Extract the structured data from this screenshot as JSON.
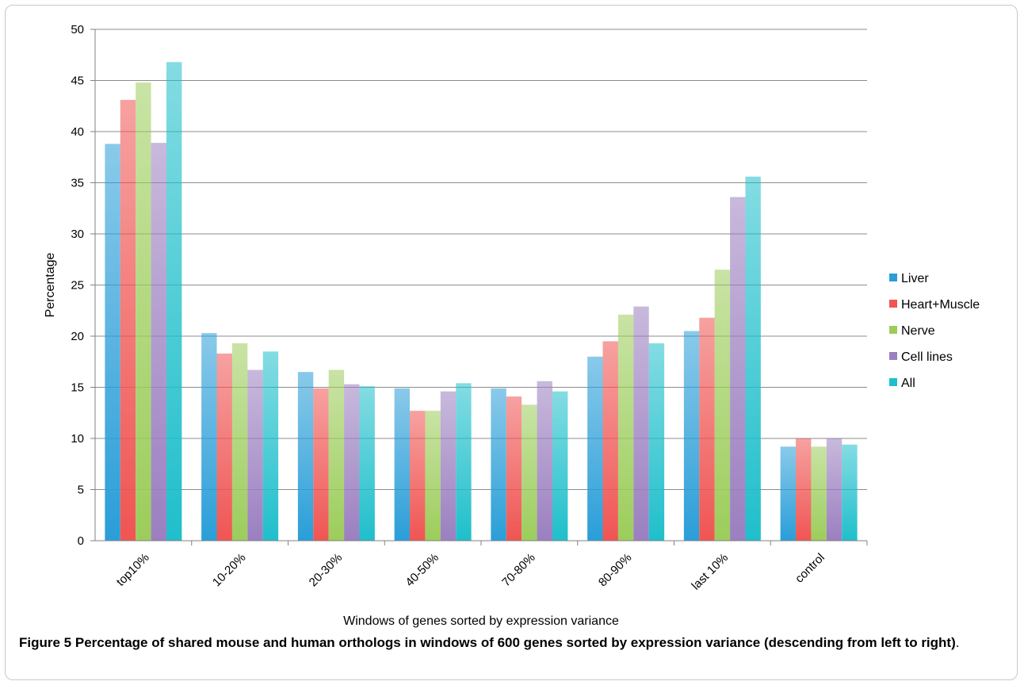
{
  "chart_data": {
    "type": "bar",
    "xlabel": "Windows of genes sorted by expression variance",
    "ylabel": "Percentage",
    "ylim": [
      0,
      50
    ],
    "yticks": [
      0,
      5,
      10,
      15,
      20,
      25,
      30,
      35,
      40,
      45,
      50
    ],
    "grid": true,
    "legend_position": "right",
    "categories": [
      "top10%",
      "10-20%",
      "20-30%",
      "40-50%",
      "70-80%",
      "80-90%",
      "last 10%",
      "control"
    ],
    "series": [
      {
        "name": "Liver",
        "color": "#2a9ed8",
        "values": [
          38.8,
          20.3,
          16.5,
          14.9,
          14.9,
          18.0,
          20.5,
          9.2
        ]
      },
      {
        "name": "Heart+Muscle",
        "color": "#ef5553",
        "values": [
          43.1,
          18.3,
          14.9,
          12.7,
          14.1,
          19.5,
          21.8,
          10.0
        ]
      },
      {
        "name": "Nerve",
        "color": "#9ccd5b",
        "values": [
          44.8,
          19.3,
          16.7,
          12.7,
          13.3,
          22.1,
          26.5,
          9.2
        ]
      },
      {
        "name": "Cell lines",
        "color": "#9b7fc0",
        "values": [
          38.9,
          16.7,
          15.3,
          14.6,
          15.6,
          22.9,
          33.6,
          10.0
        ]
      },
      {
        "name": "All",
        "color": "#1fbfcb",
        "values": [
          46.8,
          18.5,
          15.1,
          15.4,
          14.6,
          19.3,
          35.6,
          9.4
        ]
      }
    ]
  },
  "caption": {
    "label": "Figure 5",
    "text": "Percentage of shared mouse and human orthologs in windows of 600 genes sorted by expression variance (descending from left to right)",
    "tail": "."
  }
}
